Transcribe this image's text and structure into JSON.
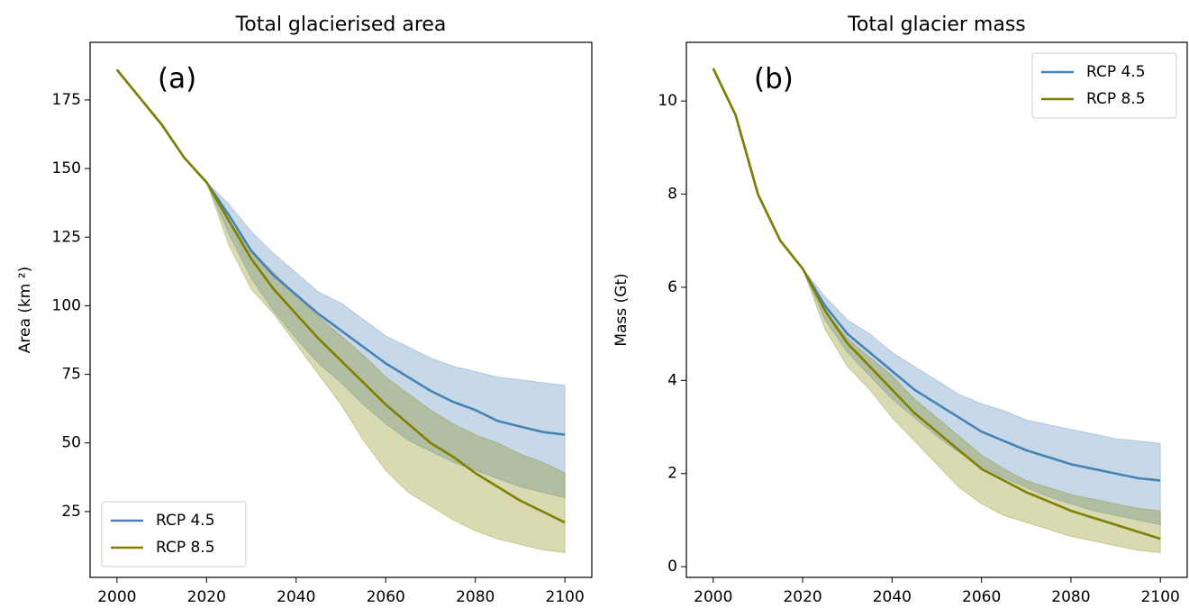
{
  "chart_data": [
    {
      "type": "line",
      "title": "Total glacierised area",
      "ylabel": "Area (km ²)",
      "annotation": "(a)",
      "x": [
        2000,
        2005,
        2010,
        2015,
        2020,
        2025,
        2030,
        2035,
        2040,
        2045,
        2050,
        2055,
        2060,
        2065,
        2070,
        2075,
        2080,
        2085,
        2090,
        2095,
        2100
      ],
      "xlim": [
        1994,
        2106
      ],
      "xticks": [
        2000,
        2020,
        2040,
        2060,
        2080,
        2100
      ],
      "ylim": [
        1,
        196
      ],
      "yticks": [
        25,
        50,
        75,
        100,
        125,
        150,
        175
      ],
      "legend": "lower left",
      "band_opacity": 0.3,
      "series": [
        {
          "name": "RCP 4.5",
          "color": "#4682b4",
          "values": [
            186,
            176,
            166,
            154,
            145,
            133,
            120,
            111,
            104,
            97,
            91,
            85,
            79,
            74,
            69,
            65,
            62,
            58,
            56,
            54,
            53
          ],
          "lower": [
            null,
            null,
            null,
            null,
            145,
            126,
            110,
            98,
            88,
            79,
            72,
            64,
            57,
            51,
            47,
            43,
            40,
            37,
            34,
            32,
            30
          ],
          "upper": [
            null,
            null,
            null,
            null,
            145,
            137,
            127,
            119,
            112,
            105,
            101,
            95,
            89,
            85,
            81,
            78,
            76,
            74,
            73,
            72,
            71
          ]
        },
        {
          "name": "RCP 8.5",
          "color": "#808000",
          "values": [
            186,
            176,
            166,
            154,
            145,
            131,
            117,
            106,
            97,
            88,
            80,
            72,
            64,
            57,
            50,
            45,
            39,
            34,
            29,
            25,
            21
          ],
          "lower": [
            null,
            null,
            null,
            null,
            145,
            122,
            106,
            97,
            86,
            75,
            64,
            51,
            40,
            32,
            27,
            22,
            18,
            15,
            13,
            11,
            10
          ],
          "upper": [
            null,
            null,
            null,
            null,
            145,
            131,
            120,
            112,
            104,
            96,
            89,
            82,
            74,
            68,
            62,
            57,
            53,
            50,
            46,
            43,
            39
          ]
        }
      ]
    },
    {
      "type": "line",
      "title": "Total glacier mass",
      "ylabel": "Mass (Gt)",
      "annotation": "(b)",
      "x": [
        2000,
        2005,
        2010,
        2015,
        2020,
        2025,
        2030,
        2035,
        2040,
        2045,
        2050,
        2055,
        2060,
        2065,
        2070,
        2075,
        2080,
        2085,
        2090,
        2095,
        2100
      ],
      "xlim": [
        1994,
        2106
      ],
      "xticks": [
        2000,
        2020,
        2040,
        2060,
        2080,
        2100
      ],
      "ylim": [
        -0.23,
        11.26
      ],
      "yticks": [
        0,
        2,
        4,
        6,
        8,
        10
      ],
      "legend": "upper right",
      "band_opacity": 0.3,
      "series": [
        {
          "name": "RCP 4.5",
          "color": "#4682b4",
          "values": [
            10.7,
            9.7,
            8.0,
            7.0,
            6.4,
            5.6,
            5.0,
            4.6,
            4.2,
            3.8,
            3.5,
            3.2,
            2.9,
            2.7,
            2.5,
            2.35,
            2.2,
            2.1,
            2.0,
            1.9,
            1.85
          ],
          "lower": [
            null,
            null,
            null,
            null,
            6.4,
            5.3,
            4.6,
            4.1,
            3.6,
            3.2,
            2.8,
            2.45,
            2.15,
            1.9,
            1.7,
            1.5,
            1.35,
            1.2,
            1.1,
            1.0,
            0.9
          ],
          "upper": [
            null,
            null,
            null,
            null,
            6.4,
            5.8,
            5.3,
            5.0,
            4.6,
            4.3,
            4.0,
            3.7,
            3.5,
            3.35,
            3.15,
            3.05,
            2.95,
            2.85,
            2.75,
            2.7,
            2.65
          ]
        },
        {
          "name": "RCP 8.5",
          "color": "#808000",
          "values": [
            10.7,
            9.7,
            8.0,
            7.0,
            6.4,
            5.5,
            4.8,
            4.3,
            3.8,
            3.3,
            2.9,
            2.5,
            2.1,
            1.85,
            1.6,
            1.4,
            1.2,
            1.05,
            0.9,
            0.75,
            0.6
          ],
          "lower": [
            null,
            null,
            null,
            null,
            6.4,
            5.1,
            4.3,
            3.8,
            3.2,
            2.7,
            2.2,
            1.7,
            1.35,
            1.1,
            0.95,
            0.8,
            0.65,
            0.55,
            0.45,
            0.35,
            0.3
          ],
          "upper": [
            null,
            null,
            null,
            null,
            6.4,
            5.5,
            4.9,
            4.5,
            4.1,
            3.6,
            3.2,
            2.8,
            2.4,
            2.1,
            1.85,
            1.7,
            1.55,
            1.45,
            1.35,
            1.25,
            1.2
          ]
        }
      ]
    }
  ]
}
